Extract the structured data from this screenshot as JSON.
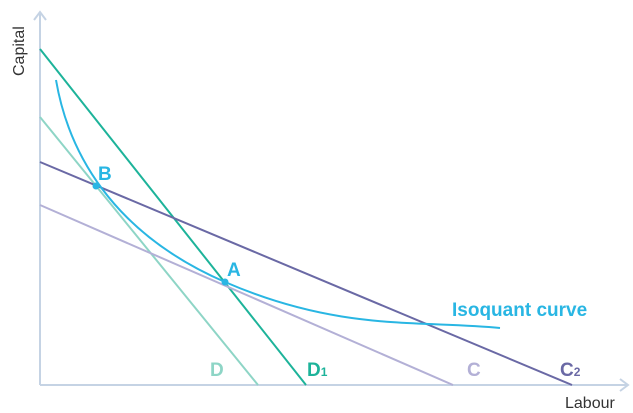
{
  "axes": {
    "x_label": "Labour",
    "y_label": "Capital",
    "color": "#c5d3e4"
  },
  "lines": {
    "D": {
      "label": "D",
      "color": "#8ed5c6"
    },
    "D1": {
      "label": "D",
      "subscript": "1",
      "color": "#1db39a"
    },
    "C": {
      "label": "C",
      "color": "#b3b0d6"
    },
    "C2": {
      "label": "C",
      "subscript": "2",
      "color": "#6a69a5"
    }
  },
  "isoquant": {
    "label": "Isoquant curve",
    "color": "#29b6e3"
  },
  "points": {
    "A": {
      "label": "A",
      "color": "#29b6e3"
    },
    "B": {
      "label": "B",
      "color": "#29b6e3"
    }
  }
}
